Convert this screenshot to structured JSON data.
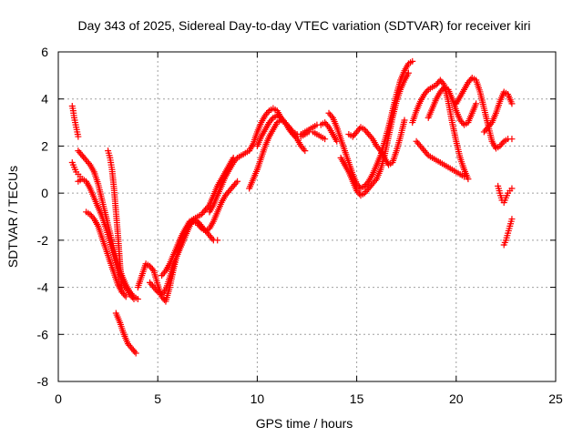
{
  "chart_data": {
    "type": "scatter",
    "title": "Day 343 of 2025, Sidereal Day-to-day VTEC variation (SDTVAR) for receiver kiri",
    "xlabel": "GPS time / hours",
    "ylabel": "SDTVAR / TECUs",
    "xlim": [
      0,
      25
    ],
    "ylim": [
      -8,
      6
    ],
    "xticks": [
      "0",
      "5",
      "10",
      "15",
      "20",
      "25"
    ],
    "yticks": [
      "-8",
      "-6",
      "-4",
      "-2",
      "0",
      "2",
      "4",
      "6"
    ],
    "grid": true,
    "marker": "plus",
    "color": "#ff0000",
    "series": [
      {
        "name": "s1",
        "x": [
          0.7,
          0.75,
          0.8,
          0.85,
          0.9,
          0.95,
          1.0
        ],
        "y": [
          3.7,
          3.5,
          3.2,
          3.0,
          2.8,
          2.6,
          2.4
        ]
      },
      {
        "name": "s2",
        "x": [
          0.7,
          0.8,
          0.9,
          1.0,
          1.1
        ],
        "y": [
          1.3,
          1.1,
          0.9,
          0.8,
          0.7
        ]
      },
      {
        "name": "s3",
        "x": [
          1.0,
          1.2,
          1.4,
          1.6,
          1.8,
          2.0,
          2.2,
          2.4,
          2.6,
          2.8,
          3.0,
          3.2,
          3.4,
          3.6,
          3.8,
          4.0
        ],
        "y": [
          1.8,
          1.6,
          1.4,
          1.2,
          0.9,
          0.4,
          -0.3,
          -1.0,
          -1.7,
          -2.4,
          -3.0,
          -3.5,
          -3.9,
          -4.2,
          -4.4,
          -4.5
        ]
      },
      {
        "name": "s4",
        "x": [
          1.0,
          1.2,
          1.4,
          1.6,
          1.8,
          2.0,
          2.2,
          2.4,
          2.6,
          2.8,
          3.0,
          3.2,
          3.4,
          3.6,
          3.8
        ],
        "y": [
          0.5,
          0.6,
          0.5,
          0.2,
          -0.2,
          -0.6,
          -1.0,
          -1.5,
          -2.1,
          -2.7,
          -3.3,
          -3.7,
          -4.0,
          -4.3,
          -4.5
        ]
      },
      {
        "name": "s5",
        "x": [
          1.4,
          1.6,
          1.8,
          2.0,
          2.2,
          2.4,
          2.6,
          2.8,
          3.0,
          3.2,
          3.4
        ],
        "y": [
          -0.8,
          -0.9,
          -1.1,
          -1.4,
          -1.9,
          -2.4,
          -2.9,
          -3.4,
          -3.9,
          -4.2,
          -4.4
        ]
      },
      {
        "name": "s6",
        "x": [
          2.5,
          2.6,
          2.7,
          2.8,
          2.9,
          3.0,
          3.1,
          3.2
        ],
        "y": [
          1.8,
          1.5,
          1.0,
          0.2,
          -0.8,
          -1.8,
          -3.0,
          -4.2
        ]
      },
      {
        "name": "s7",
        "x": [
          2.9,
          3.1,
          3.3,
          3.5,
          3.7,
          3.9
        ],
        "y": [
          -5.1,
          -5.5,
          -6.0,
          -6.4,
          -6.6,
          -6.8
        ]
      },
      {
        "name": "s8",
        "x": [
          4.0,
          4.2,
          4.4,
          4.6,
          4.8,
          5.0,
          5.2,
          5.4,
          5.6,
          5.8,
          6.0,
          6.2,
          6.4,
          6.6,
          6.8,
          7.0,
          7.2,
          7.4,
          7.6,
          7.8,
          8.0
        ],
        "y": [
          -4.0,
          -3.5,
          -3.0,
          -3.1,
          -3.3,
          -3.9,
          -4.4,
          -4.6,
          -4.0,
          -3.2,
          -2.5,
          -2.0,
          -1.5,
          -1.2,
          -1.1,
          -1.2,
          -1.4,
          -1.6,
          -1.8,
          -2.0,
          -2.0
        ]
      },
      {
        "name": "s9",
        "x": [
          4.6,
          4.8,
          5.0,
          5.2,
          5.4,
          5.6,
          5.8,
          6.0,
          6.2,
          6.4,
          6.6,
          6.8,
          7.0,
          7.2,
          7.4,
          7.6,
          7.8,
          8.0,
          8.2,
          8.4,
          8.6,
          8.8
        ],
        "y": [
          -3.8,
          -4.0,
          -4.2,
          -4.3,
          -4.1,
          -3.6,
          -3.0,
          -2.6,
          -2.2,
          -1.8,
          -1.4,
          -1.1,
          -1.0,
          -0.9,
          -0.7,
          -0.5,
          -0.1,
          0.3,
          0.6,
          0.9,
          1.2,
          1.5
        ]
      },
      {
        "name": "s10",
        "x": [
          5.2,
          5.4,
          5.6,
          5.8,
          6.0,
          6.2,
          6.4,
          6.6,
          6.8,
          7.0,
          7.2,
          7.4,
          7.6,
          7.8,
          8.0,
          8.2,
          8.4,
          8.6,
          8.8,
          9.0
        ],
        "y": [
          -3.5,
          -3.3,
          -3.0,
          -2.6,
          -2.2,
          -1.8,
          -1.5,
          -1.3,
          -1.2,
          -1.3,
          -1.5,
          -1.6,
          -1.5,
          -1.2,
          -0.8,
          -0.4,
          -0.1,
          0.1,
          0.3,
          0.5
        ]
      },
      {
        "name": "s11",
        "x": [
          7.6,
          7.8,
          8.0,
          8.2,
          8.4,
          8.6,
          8.8,
          9.0,
          9.2,
          9.4,
          9.6,
          9.8,
          10.0,
          10.2,
          10.4,
          10.6,
          10.8,
          11.0,
          11.2,
          11.4,
          11.6,
          11.8,
          12.0,
          12.2,
          12.4
        ],
        "y": [
          -0.8,
          -0.5,
          -0.1,
          0.3,
          0.7,
          1.0,
          1.3,
          1.5,
          1.6,
          1.7,
          1.8,
          2.1,
          2.6,
          3.0,
          3.3,
          3.5,
          3.6,
          3.5,
          3.2,
          3.0,
          2.8,
          2.5,
          2.3,
          2.0,
          1.8
        ]
      },
      {
        "name": "s12",
        "x": [
          9.6,
          9.8,
          10.0,
          10.2,
          10.4,
          10.6,
          10.8,
          11.0,
          11.2,
          11.4,
          11.6,
          11.8,
          12.0,
          12.2,
          12.4,
          12.6,
          12.8,
          13.0,
          13.2,
          13.4,
          13.6,
          13.8,
          14.0
        ],
        "y": [
          0.2,
          0.6,
          1.0,
          1.5,
          2.0,
          2.4,
          2.7,
          3.0,
          3.1,
          3.0,
          2.8,
          2.6,
          2.5,
          2.5,
          2.6,
          2.7,
          2.8,
          2.9,
          2.9,
          3.0,
          2.8,
          2.5,
          2.2
        ]
      },
      {
        "name": "s13",
        "x": [
          10.0,
          10.2,
          10.4,
          10.6,
          10.8,
          11.0,
          11.2,
          11.4,
          11.6,
          11.8,
          12.0,
          12.2,
          12.4,
          12.6,
          12.8,
          13.0,
          13.2,
          13.4
        ],
        "y": [
          2.0,
          2.4,
          2.7,
          3.0,
          3.2,
          3.3,
          3.2,
          3.0,
          2.7,
          2.5,
          2.4,
          2.4,
          2.5,
          2.6,
          2.6,
          2.5,
          2.4,
          2.3
        ]
      },
      {
        "name": "s14",
        "x": [
          13.6,
          13.8,
          14.0,
          14.2,
          14.4,
          14.6,
          14.8,
          15.0,
          15.2,
          15.4,
          15.6,
          15.8,
          16.0,
          16.2,
          16.4,
          16.6,
          16.8,
          17.0,
          17.2,
          17.4,
          17.6,
          17.8
        ],
        "y": [
          3.4,
          3.2,
          2.8,
          2.3,
          1.8,
          1.3,
          0.8,
          0.4,
          0.2,
          0.3,
          0.5,
          0.8,
          1.2,
          1.6,
          2.2,
          2.8,
          3.5,
          4.2,
          4.8,
          5.2,
          5.5,
          5.6
        ]
      },
      {
        "name": "s15",
        "x": [
          14.2,
          14.4,
          14.6,
          14.8,
          15.0,
          15.2,
          15.4,
          15.6,
          15.8,
          16.0,
          16.2,
          16.4,
          16.6,
          16.8,
          17.0,
          17.2,
          17.4,
          17.6
        ],
        "y": [
          1.5,
          1.2,
          0.9,
          0.5,
          0.1,
          -0.1,
          0.0,
          0.2,
          0.4,
          0.6,
          1.0,
          1.6,
          2.4,
          3.2,
          3.9,
          4.4,
          4.8,
          5.1
        ]
      },
      {
        "name": "s16",
        "x": [
          14.6,
          14.8,
          15.0,
          15.2,
          15.4,
          15.6,
          15.8,
          16.0,
          16.2,
          16.4,
          16.6,
          16.8,
          17.0,
          17.2,
          17.4
        ],
        "y": [
          2.5,
          2.4,
          2.6,
          2.8,
          2.7,
          2.5,
          2.3,
          2.0,
          1.8,
          1.5,
          1.2,
          1.3,
          1.8,
          2.4,
          3.1
        ]
      },
      {
        "name": "s17",
        "x": [
          17.8,
          18.0,
          18.2,
          18.4,
          18.6,
          18.8,
          19.0,
          19.2,
          19.4,
          19.6,
          19.8,
          20.0,
          20.2,
          20.4,
          20.6
        ],
        "y": [
          3.0,
          3.5,
          3.9,
          4.2,
          4.4,
          4.5,
          4.6,
          4.8,
          4.6,
          3.9,
          3.0,
          2.2,
          1.5,
          1.0,
          0.6
        ]
      },
      {
        "name": "s18",
        "x": [
          18.0,
          18.2,
          18.4,
          18.6,
          18.8,
          19.0,
          19.2,
          19.4,
          19.6,
          19.8,
          20.0,
          20.2,
          20.4
        ],
        "y": [
          2.2,
          2.0,
          1.8,
          1.6,
          1.5,
          1.4,
          1.3,
          1.2,
          1.1,
          1.0,
          0.9,
          0.8,
          0.7
        ]
      },
      {
        "name": "s19",
        "x": [
          18.6,
          18.8,
          19.0,
          19.2,
          19.4,
          19.6,
          19.8,
          20.0,
          20.2,
          20.4,
          20.6,
          20.8,
          21.0
        ],
        "y": [
          3.2,
          3.6,
          4.0,
          4.3,
          4.5,
          4.4,
          4.0,
          3.5,
          3.1,
          2.9,
          3.0,
          3.4,
          3.8
        ]
      },
      {
        "name": "s20",
        "x": [
          20.0,
          20.2,
          20.4,
          20.6,
          20.8,
          21.0,
          21.2,
          21.4,
          21.6,
          21.8,
          22.0,
          22.2,
          22.4,
          22.6,
          22.8
        ],
        "y": [
          3.8,
          4.1,
          4.4,
          4.7,
          4.9,
          4.8,
          4.3,
          3.6,
          2.9,
          2.2,
          1.9,
          2.0,
          2.2,
          2.3,
          2.3
        ]
      },
      {
        "name": "s21",
        "x": [
          21.4,
          21.6,
          21.8,
          22.0,
          22.2,
          22.4,
          22.6,
          22.8
        ],
        "y": [
          2.6,
          2.8,
          3.0,
          3.4,
          3.9,
          4.3,
          4.2,
          3.8
        ]
      },
      {
        "name": "s22",
        "x": [
          22.1,
          22.2,
          22.3,
          22.4,
          22.5,
          22.6,
          22.7,
          22.8
        ],
        "y": [
          0.3,
          0.0,
          -0.3,
          -0.4,
          -0.2,
          0.0,
          0.1,
          0.2
        ]
      },
      {
        "name": "s23",
        "x": [
          22.4,
          22.5,
          22.6,
          22.7,
          22.8
        ],
        "y": [
          -2.2,
          -2.0,
          -1.7,
          -1.4,
          -1.1
        ]
      }
    ]
  }
}
